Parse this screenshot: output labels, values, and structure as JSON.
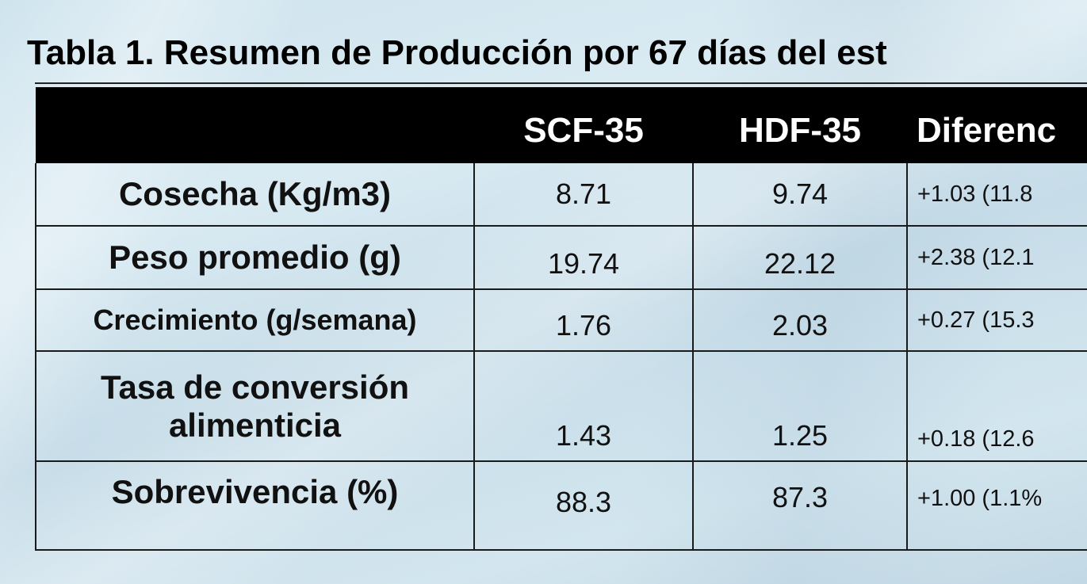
{
  "title": "Tabla 1. Resumen de Producción por 67 días del est",
  "table": {
    "headers": [
      "",
      "SCF-35",
      "HDF-35",
      "Diferenc"
    ],
    "rows": [
      {
        "label": "Cosecha (Kg/m3)",
        "scf": "8.71",
        "hdf": "9.74",
        "diff": "+1.03 (11.8"
      },
      {
        "label": "Peso promedio (g)",
        "scf": "19.74",
        "hdf": "22.12",
        "diff": "+2.38 (12.1"
      },
      {
        "label": "Crecimiento (g/semana)",
        "scf": "1.76",
        "hdf": "2.03",
        "diff": "+0.27 (15.3"
      },
      {
        "label_line1": "Tasa de conversión",
        "label_line2": "alimenticia",
        "scf": "1.43",
        "hdf": "1.25",
        "diff": "+0.18 (12.6"
      },
      {
        "label": "Sobrevivencia (%)",
        "scf": "88.3",
        "hdf": "87.3",
        "diff": "+1.00 (1.1%"
      }
    ]
  }
}
